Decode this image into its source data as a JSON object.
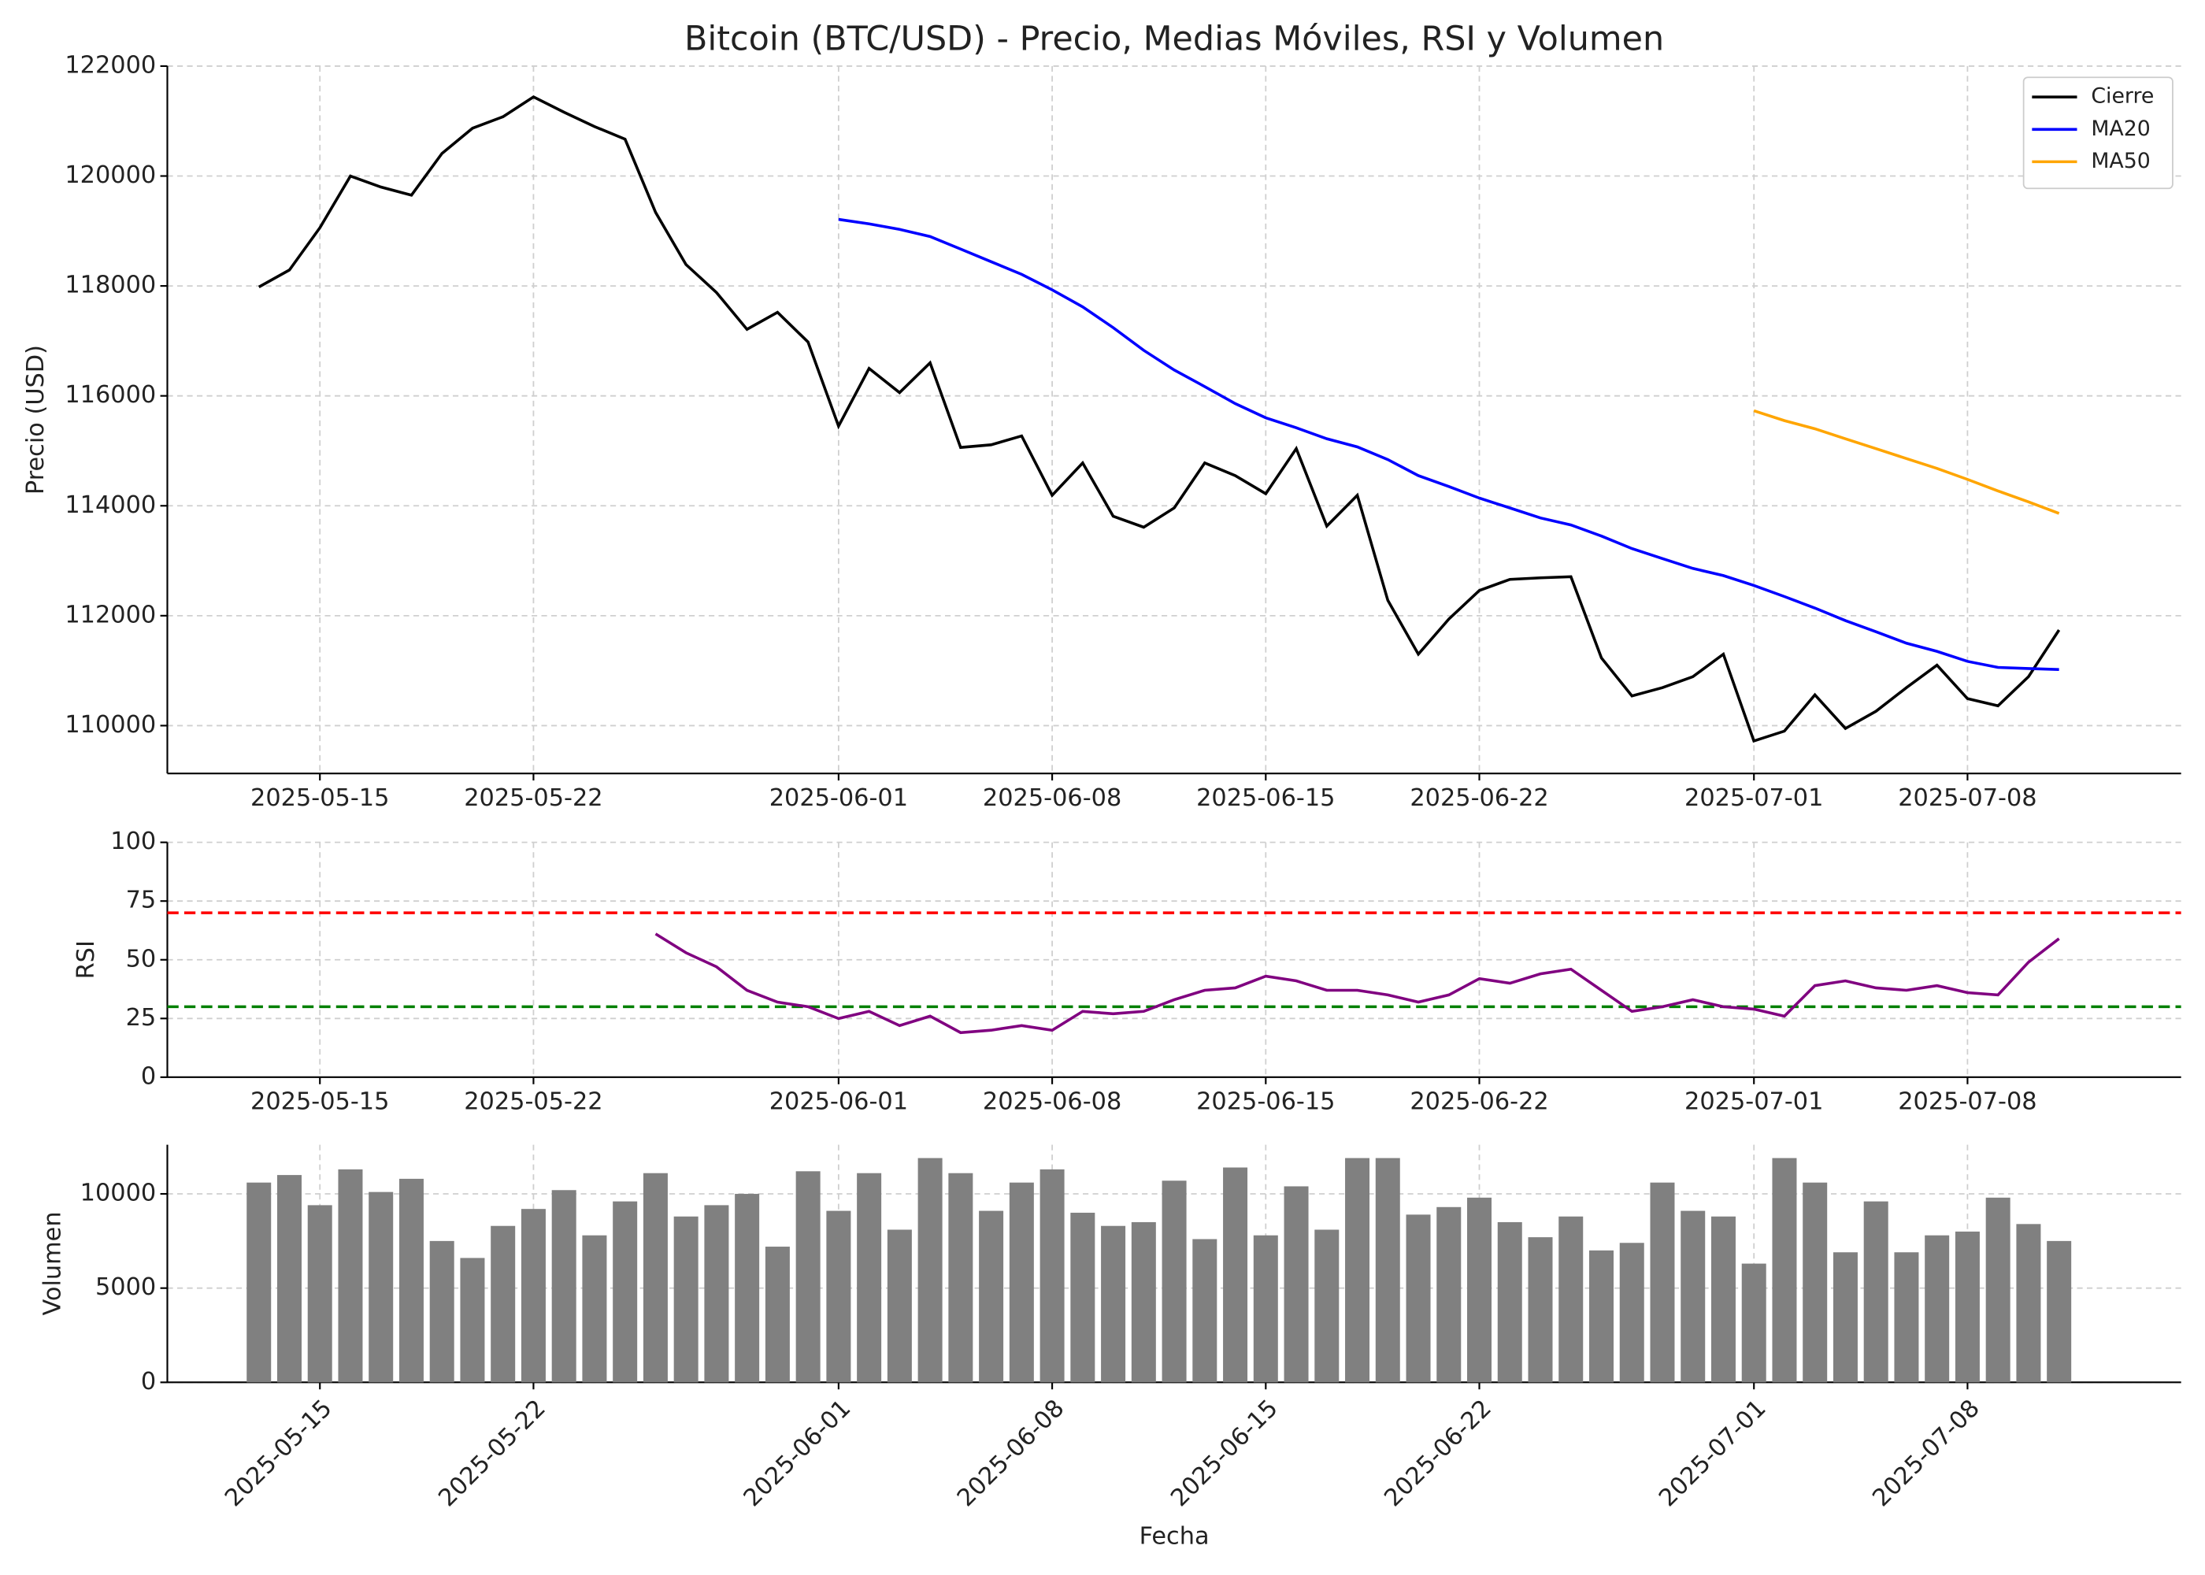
{
  "chart_data": [
    {
      "type": "line",
      "title": "Bitcoin (BTC/USD) - Precio, Medias Móviles, RSI y Volumen",
      "ylabel": "Precio (USD)",
      "x": [
        "2025-05-13",
        "2025-05-14",
        "2025-05-15",
        "2025-05-16",
        "2025-05-17",
        "2025-05-18",
        "2025-05-19",
        "2025-05-20",
        "2025-05-21",
        "2025-05-22",
        "2025-05-23",
        "2025-05-24",
        "2025-05-25",
        "2025-05-26",
        "2025-05-27",
        "2025-05-28",
        "2025-05-29",
        "2025-05-30",
        "2025-05-31",
        "2025-06-01",
        "2025-06-02",
        "2025-06-03",
        "2025-06-04",
        "2025-06-05",
        "2025-06-06",
        "2025-06-07",
        "2025-06-08",
        "2025-06-09",
        "2025-06-10",
        "2025-06-11",
        "2025-06-12",
        "2025-06-13",
        "2025-06-14",
        "2025-06-15",
        "2025-06-16",
        "2025-06-17",
        "2025-06-18",
        "2025-06-19",
        "2025-06-20",
        "2025-06-21",
        "2025-06-22",
        "2025-06-23",
        "2025-06-24",
        "2025-06-25",
        "2025-06-26",
        "2025-06-27",
        "2025-06-28",
        "2025-06-29",
        "2025-06-30",
        "2025-07-01",
        "2025-07-02",
        "2025-07-03",
        "2025-07-04",
        "2025-07-05",
        "2025-07-06",
        "2025-07-07",
        "2025-07-08",
        "2025-07-09",
        "2025-07-10",
        "2025-07-11"
      ],
      "xlim": [
        "2025-05-10",
        "2025-07-15"
      ],
      "xticks": [
        "2025-05-15",
        "2025-05-22",
        "2025-06-01",
        "2025-06-08",
        "2025-06-15",
        "2025-06-22",
        "2025-07-01",
        "2025-07-08"
      ],
      "ylim": [
        109130,
        122000
      ],
      "yticks": [
        110000,
        112000,
        114000,
        116000,
        118000,
        120000,
        122000
      ],
      "grid": true,
      "legend": "upper right",
      "series": [
        {
          "name": "Cierre",
          "color": "#000000",
          "values": [
            117980,
            118290,
            119060,
            120000,
            119800,
            119650,
            120410,
            120870,
            121080,
            121440,
            121160,
            120900,
            120670,
            119340,
            118390,
            117880,
            117210,
            117520,
            116980,
            115450,
            116500,
            116060,
            116600,
            115060,
            115110,
            115270,
            114190,
            114780,
            113810,
            113610,
            113960,
            114780,
            114550,
            114220,
            115040,
            113630,
            114190,
            112280,
            111300,
            111940,
            112460,
            112660,
            112690,
            112710,
            111230,
            110540,
            110690,
            110890,
            111300,
            109720,
            109900,
            110560,
            109950,
            110260,
            110690,
            111100,
            110490,
            110360,
            110890,
            111740
          ]
        },
        {
          "name": "MA20",
          "color": "#0000ff",
          "values": [
            null,
            null,
            null,
            null,
            null,
            null,
            null,
            null,
            null,
            null,
            null,
            null,
            null,
            null,
            null,
            null,
            null,
            null,
            null,
            119210,
            119130,
            119030,
            118900,
            118670,
            118440,
            118210,
            117930,
            117620,
            117240,
            116830,
            116470,
            116170,
            115860,
            115600,
            115420,
            115220,
            115070,
            114840,
            114550,
            114350,
            114140,
            113960,
            113780,
            113650,
            113450,
            113220,
            113040,
            112860,
            112730,
            112550,
            112350,
            112140,
            111910,
            111710,
            111500,
            111350,
            111170,
            111060,
            111040,
            111020
          ]
        },
        {
          "name": "MA50",
          "color": "#ffa500",
          "values": [
            null,
            null,
            null,
            null,
            null,
            null,
            null,
            null,
            null,
            null,
            null,
            null,
            null,
            null,
            null,
            null,
            null,
            null,
            null,
            null,
            null,
            null,
            null,
            null,
            null,
            null,
            null,
            null,
            null,
            null,
            null,
            null,
            null,
            null,
            null,
            null,
            null,
            null,
            null,
            null,
            null,
            null,
            null,
            null,
            null,
            null,
            null,
            null,
            null,
            115730,
            115550,
            115400,
            115220,
            115040,
            114860,
            114680,
            114480,
            114270,
            114070,
            113860
          ]
        }
      ]
    },
    {
      "type": "line",
      "ylabel": "RSI",
      "x": [
        "2025-05-13",
        "2025-05-14",
        "2025-05-15",
        "2025-05-16",
        "2025-05-17",
        "2025-05-18",
        "2025-05-19",
        "2025-05-20",
        "2025-05-21",
        "2025-05-22",
        "2025-05-23",
        "2025-05-24",
        "2025-05-25",
        "2025-05-26",
        "2025-05-27",
        "2025-05-28",
        "2025-05-29",
        "2025-05-30",
        "2025-05-31",
        "2025-06-01",
        "2025-06-02",
        "2025-06-03",
        "2025-06-04",
        "2025-06-05",
        "2025-06-06",
        "2025-06-07",
        "2025-06-08",
        "2025-06-09",
        "2025-06-10",
        "2025-06-11",
        "2025-06-12",
        "2025-06-13",
        "2025-06-14",
        "2025-06-15",
        "2025-06-16",
        "2025-06-17",
        "2025-06-18",
        "2025-06-19",
        "2025-06-20",
        "2025-06-21",
        "2025-06-22",
        "2025-06-23",
        "2025-06-24",
        "2025-06-25",
        "2025-06-26",
        "2025-06-27",
        "2025-06-28",
        "2025-06-29",
        "2025-06-30",
        "2025-07-01",
        "2025-07-02",
        "2025-07-03",
        "2025-07-04",
        "2025-07-05",
        "2025-07-06",
        "2025-07-07",
        "2025-07-08",
        "2025-07-09",
        "2025-07-10",
        "2025-07-11"
      ],
      "xlim": [
        "2025-05-10",
        "2025-07-15"
      ],
      "xticks": [
        "2025-05-15",
        "2025-05-22",
        "2025-06-01",
        "2025-06-08",
        "2025-06-15",
        "2025-06-22",
        "2025-07-01",
        "2025-07-08"
      ],
      "ylim": [
        0,
        100
      ],
      "yticks": [
        0,
        25,
        50,
        75,
        100
      ],
      "grid": true,
      "hlines": [
        {
          "value": 70,
          "color": "#ff0000"
        },
        {
          "value": 30,
          "color": "#008000"
        }
      ],
      "series": [
        {
          "color": "#800080",
          "values": [
            null,
            null,
            null,
            null,
            null,
            null,
            null,
            null,
            null,
            null,
            null,
            null,
            null,
            61,
            53,
            47,
            37,
            32,
            30,
            25,
            28,
            22,
            26,
            19,
            20,
            22,
            20,
            28,
            27,
            28,
            33,
            37,
            38,
            43,
            41,
            37,
            37,
            35,
            32,
            35,
            42,
            40,
            44,
            46,
            37,
            28,
            30,
            33,
            30,
            29,
            26,
            39,
            41,
            38,
            37,
            39,
            36,
            35,
            49,
            59
          ]
        }
      ]
    },
    {
      "type": "bar",
      "ylabel": "Volumen",
      "xlabel": "Fecha",
      "x": [
        "2025-05-13",
        "2025-05-14",
        "2025-05-15",
        "2025-05-16",
        "2025-05-17",
        "2025-05-18",
        "2025-05-19",
        "2025-05-20",
        "2025-05-21",
        "2025-05-22",
        "2025-05-23",
        "2025-05-24",
        "2025-05-25",
        "2025-05-26",
        "2025-05-27",
        "2025-05-28",
        "2025-05-29",
        "2025-05-30",
        "2025-05-31",
        "2025-06-01",
        "2025-06-02",
        "2025-06-03",
        "2025-06-04",
        "2025-06-05",
        "2025-06-06",
        "2025-06-07",
        "2025-06-08",
        "2025-06-09",
        "2025-06-10",
        "2025-06-11",
        "2025-06-12",
        "2025-06-13",
        "2025-06-14",
        "2025-06-15",
        "2025-06-16",
        "2025-06-17",
        "2025-06-18",
        "2025-06-19",
        "2025-06-20",
        "2025-06-21",
        "2025-06-22",
        "2025-06-23",
        "2025-06-24",
        "2025-06-25",
        "2025-06-26",
        "2025-06-27",
        "2025-06-28",
        "2025-06-29",
        "2025-06-30",
        "2025-07-01",
        "2025-07-02",
        "2025-07-03",
        "2025-07-04",
        "2025-07-05",
        "2025-07-06",
        "2025-07-07",
        "2025-07-08",
        "2025-07-09",
        "2025-07-10",
        "2025-07-11"
      ],
      "xlim": [
        "2025-05-10",
        "2025-07-15"
      ],
      "xticks": [
        "2025-05-15",
        "2025-05-22",
        "2025-06-01",
        "2025-06-08",
        "2025-06-15",
        "2025-06-22",
        "2025-07-01",
        "2025-07-08"
      ],
      "ylim": [
        0,
        12610
      ],
      "yticks": [
        0,
        5000,
        10000
      ],
      "grid": true,
      "color": "#808080",
      "values": [
        10600,
        11000,
        9400,
        11300,
        10100,
        10800,
        7500,
        6600,
        8300,
        9200,
        10200,
        7800,
        9600,
        11100,
        8800,
        9400,
        10000,
        7200,
        11200,
        9100,
        11100,
        8100,
        11900,
        11100,
        9100,
        10600,
        11300,
        9000,
        8300,
        8500,
        10700,
        7600,
        11400,
        7800,
        10400,
        8100,
        11900,
        11900,
        8900,
        9300,
        9800,
        8500,
        7700,
        8800,
        7000,
        7400,
        10600,
        9100,
        8800,
        6300,
        11900,
        10600,
        6900,
        9600,
        6900,
        7800,
        8000,
        9800,
        8400,
        7500
      ]
    }
  ]
}
